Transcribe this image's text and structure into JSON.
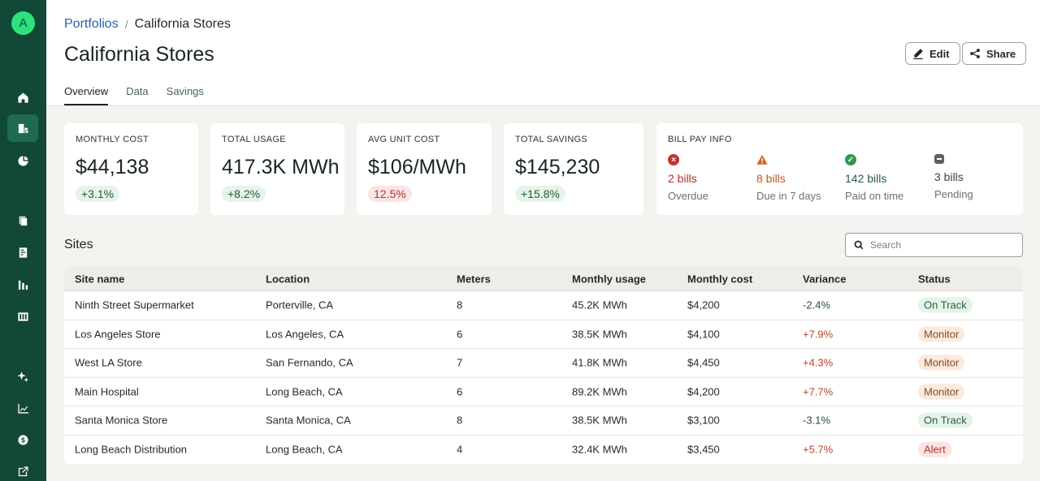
{
  "breadcrumb": {
    "parent": "Portfolios",
    "separator": "/",
    "current": "California Stores"
  },
  "page_title": "California Stores",
  "actions": {
    "edit": "Edit",
    "share": "Share"
  },
  "tabs": [
    "Overview",
    "Data",
    "Savings"
  ],
  "stats": [
    {
      "label": "MONTHLY COST",
      "value": "$44,138",
      "change": "+3.1%",
      "tone": "pos"
    },
    {
      "label": "TOTAL USAGE",
      "value": "417.3K MWh",
      "change": "+8.2%",
      "tone": "pos"
    },
    {
      "label": "AVG UNIT COST",
      "value": "$106/MWh",
      "change": "12.5%",
      "tone": "neg"
    },
    {
      "label": "TOTAL SAVINGS",
      "value": "$145,230",
      "change": "+15.8%",
      "tone": "pos"
    }
  ],
  "bill_pay": {
    "label": "BILL PAY INFO",
    "items": [
      {
        "count": "2 bills",
        "sub": "Overdue",
        "color": "#c8302c",
        "icon": "x-octagon-icon"
      },
      {
        "count": "8 bills",
        "sub": "Due in 7 days",
        "color": "#d4621c",
        "icon": "warning-icon"
      },
      {
        "count": "142 bills",
        "sub": "Paid on time",
        "color": "#2c9a4a",
        "icon": "check-circle-icon"
      },
      {
        "count": "3 bills",
        "sub": "Pending",
        "color": "#5b6360",
        "icon": "pending-icon"
      }
    ]
  },
  "sites": {
    "title": "Sites",
    "search_placeholder": "Search",
    "columns": [
      "Site name",
      "Location",
      "Meters",
      "Monthly usage",
      "Monthly cost",
      "Variance",
      "Status"
    ],
    "rows": [
      {
        "name": "Ninth Street Supermarket",
        "location": "Porterville, CA",
        "meters": "8",
        "usage": "45.2K MWh",
        "cost": "$4,200",
        "variance": "-2.4%",
        "status": "On Track"
      },
      {
        "name": "Los Angeles Store",
        "location": "Los Angeles, CA",
        "meters": "6",
        "usage": "38.5K MWh",
        "cost": "$4,100",
        "variance": "+7.9%",
        "status": "Monitor"
      },
      {
        "name": "West LA Store",
        "location": "San Fernando, CA",
        "meters": "7",
        "usage": "41.8K MWh",
        "cost": "$4,450",
        "variance": "+4.3%",
        "status": "Monitor"
      },
      {
        "name": "Main Hospital",
        "location": "Long Beach, CA",
        "meters": "6",
        "usage": "89.2K MWh",
        "cost": "$4,200",
        "variance": "+7.7%",
        "status": "Monitor"
      },
      {
        "name": "Santa Monica Store",
        "location": "Santa Monica, CA",
        "meters": "8",
        "usage": "38.5K MWh",
        "cost": "$3,100",
        "variance": "-3.1%",
        "status": "On Track"
      },
      {
        "name": "Long Beach Distribution",
        "location": "Long Beach, CA",
        "meters": "4",
        "usage": "32.4K MWh",
        "cost": "$3,450",
        "variance": "+5.7%",
        "status": "Alert"
      }
    ]
  },
  "sidebar": {
    "logo_letter": "A",
    "icons": [
      "home-icon",
      "portfolio-icon",
      "pie-chart-icon",
      "copy-icon",
      "invoice-icon",
      "bar-chart-icon",
      "columns-icon",
      "sparkle-icon",
      "trend-icon",
      "dollar-icon",
      "external-link-icon"
    ]
  }
}
